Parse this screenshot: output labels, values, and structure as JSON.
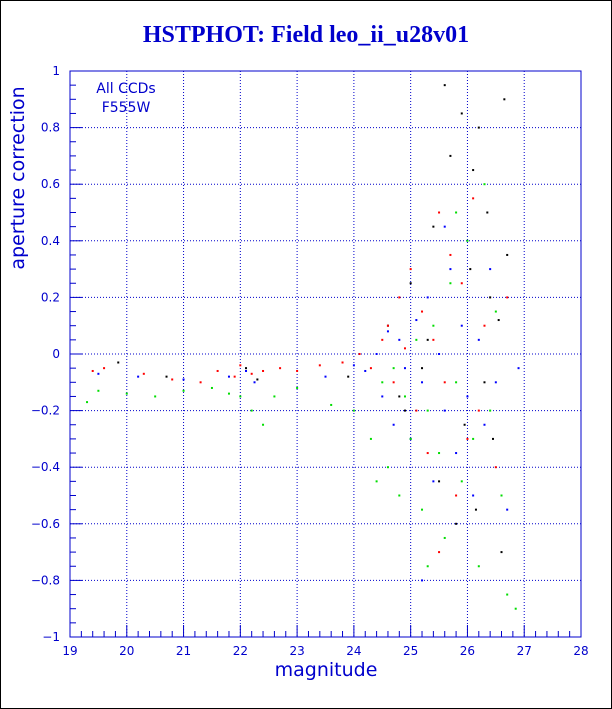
{
  "title": "HSTPHOT: Field leo_ii_u28v01",
  "chart_data": {
    "type": "scatter",
    "title": "HSTPHOT: Field leo_ii_u28v01",
    "xlabel": "magnitude",
    "ylabel": "aperture correction",
    "xlim": [
      19,
      28
    ],
    "ylim": [
      -1,
      1
    ],
    "x_ticks": [
      19,
      20,
      21,
      22,
      23,
      24,
      25,
      26,
      27,
      28
    ],
    "y_ticks": [
      -1,
      -0.8,
      -0.6,
      -0.4,
      -0.2,
      0,
      0.2,
      0.4,
      0.6,
      0.8,
      1
    ],
    "y_tick_labels": [
      "−1",
      "−0.8",
      "−0.6",
      "−0.4",
      "−0.2",
      "0",
      "0.2",
      "0.4",
      "0.6",
      "0.8",
      "1"
    ],
    "grid": true,
    "grid_style": "dotted",
    "annotations": [
      "All CCDs",
      "F555W"
    ],
    "series": [
      {
        "color": "#000000",
        "points": [
          [
            19.85,
            -0.03
          ],
          [
            20.7,
            -0.08
          ],
          [
            22.1,
            -0.05
          ],
          [
            22.3,
            -0.09
          ],
          [
            23.9,
            -0.08
          ],
          [
            24.6,
            0.1
          ],
          [
            24.8,
            -0.15
          ],
          [
            25.0,
            0.25
          ],
          [
            25.2,
            -0.05
          ],
          [
            25.4,
            0.45
          ],
          [
            25.5,
            -0.45
          ],
          [
            25.6,
            0.95
          ],
          [
            25.7,
            0.7
          ],
          [
            25.8,
            -0.6
          ],
          [
            25.9,
            0.85
          ],
          [
            25.95,
            -0.25
          ],
          [
            26.05,
            0.3
          ],
          [
            26.1,
            0.65
          ],
          [
            26.15,
            -0.55
          ],
          [
            26.2,
            0.8
          ],
          [
            26.3,
            -0.1
          ],
          [
            26.35,
            0.5
          ],
          [
            26.4,
            0.2
          ],
          [
            26.45,
            -0.3
          ],
          [
            26.55,
            0.12
          ],
          [
            26.6,
            -0.7
          ],
          [
            26.65,
            0.9
          ],
          [
            26.7,
            0.35
          ],
          [
            25.3,
            0.05
          ],
          [
            24.9,
            -0.2
          ]
        ]
      },
      {
        "color": "#ff0000",
        "points": [
          [
            19.4,
            -0.06
          ],
          [
            19.6,
            -0.05
          ],
          [
            20.3,
            -0.07
          ],
          [
            20.8,
            -0.09
          ],
          [
            21.3,
            -0.1
          ],
          [
            21.6,
            -0.06
          ],
          [
            21.9,
            -0.08
          ],
          [
            22.0,
            -0.04
          ],
          [
            22.2,
            -0.07
          ],
          [
            22.4,
            -0.06
          ],
          [
            22.7,
            -0.05
          ],
          [
            23.0,
            -0.06
          ],
          [
            23.4,
            -0.04
          ],
          [
            23.8,
            -0.03
          ],
          [
            24.1,
            0.0
          ],
          [
            24.3,
            -0.05
          ],
          [
            24.5,
            0.05
          ],
          [
            24.6,
            0.1
          ],
          [
            24.7,
            -0.1
          ],
          [
            24.8,
            0.2
          ],
          [
            24.9,
            0.02
          ],
          [
            25.0,
            0.3
          ],
          [
            25.1,
            -0.2
          ],
          [
            25.2,
            0.15
          ],
          [
            25.3,
            -0.35
          ],
          [
            25.4,
            0.05
          ],
          [
            25.5,
            0.5
          ],
          [
            25.6,
            -0.1
          ],
          [
            25.7,
            0.35
          ],
          [
            25.8,
            -0.5
          ],
          [
            25.9,
            0.25
          ],
          [
            26.0,
            -0.3
          ],
          [
            26.1,
            0.55
          ],
          [
            26.2,
            -0.2
          ],
          [
            26.3,
            0.1
          ],
          [
            26.5,
            -0.4
          ],
          [
            26.7,
            0.2
          ],
          [
            25.5,
            -0.7
          ]
        ]
      },
      {
        "color": "#0000ff",
        "points": [
          [
            19.5,
            -0.07
          ],
          [
            20.2,
            -0.08
          ],
          [
            21.0,
            -0.09
          ],
          [
            21.8,
            -0.08
          ],
          [
            22.1,
            -0.06
          ],
          [
            22.25,
            -0.1
          ],
          [
            23.5,
            -0.08
          ],
          [
            24.0,
            -0.04
          ],
          [
            24.2,
            -0.06
          ],
          [
            24.4,
            0.0
          ],
          [
            24.5,
            -0.15
          ],
          [
            24.6,
            0.08
          ],
          [
            24.7,
            -0.25
          ],
          [
            24.8,
            0.05
          ],
          [
            24.9,
            -0.05
          ],
          [
            25.0,
            -0.3
          ],
          [
            25.1,
            0.12
          ],
          [
            25.2,
            -0.1
          ],
          [
            25.3,
            0.2
          ],
          [
            25.4,
            -0.45
          ],
          [
            25.5,
            0.0
          ],
          [
            25.6,
            -0.2
          ],
          [
            25.7,
            0.3
          ],
          [
            25.8,
            -0.35
          ],
          [
            25.9,
            0.1
          ],
          [
            26.0,
            -0.15
          ],
          [
            26.1,
            -0.5
          ],
          [
            26.2,
            0.05
          ],
          [
            26.3,
            -0.25
          ],
          [
            26.4,
            0.3
          ],
          [
            26.5,
            -0.1
          ],
          [
            26.7,
            -0.55
          ],
          [
            26.9,
            -0.05
          ],
          [
            25.2,
            -0.8
          ],
          [
            25.6,
            0.45
          ]
        ]
      },
      {
        "color": "#00dd00",
        "points": [
          [
            19.3,
            -0.17
          ],
          [
            19.5,
            -0.13
          ],
          [
            20.0,
            -0.14
          ],
          [
            20.5,
            -0.15
          ],
          [
            21.0,
            -0.13
          ],
          [
            21.5,
            -0.12
          ],
          [
            21.8,
            -0.14
          ],
          [
            22.0,
            -0.15
          ],
          [
            22.2,
            -0.2
          ],
          [
            22.4,
            -0.25
          ],
          [
            22.6,
            -0.15
          ],
          [
            23.0,
            -0.12
          ],
          [
            23.6,
            -0.18
          ],
          [
            24.0,
            -0.2
          ],
          [
            24.3,
            -0.3
          ],
          [
            24.5,
            -0.1
          ],
          [
            24.6,
            -0.4
          ],
          [
            24.7,
            -0.05
          ],
          [
            24.8,
            -0.5
          ],
          [
            24.9,
            -0.15
          ],
          [
            25.0,
            -0.3
          ],
          [
            25.1,
            0.05
          ],
          [
            25.2,
            -0.55
          ],
          [
            25.3,
            -0.2
          ],
          [
            25.4,
            0.1
          ],
          [
            25.5,
            -0.35
          ],
          [
            25.6,
            -0.65
          ],
          [
            25.7,
            0.25
          ],
          [
            25.8,
            -0.1
          ],
          [
            25.9,
            -0.45
          ],
          [
            26.0,
            0.4
          ],
          [
            26.1,
            -0.3
          ],
          [
            26.2,
            -0.75
          ],
          [
            26.3,
            0.6
          ],
          [
            26.4,
            -0.2
          ],
          [
            26.5,
            0.15
          ],
          [
            26.6,
            -0.5
          ],
          [
            26.7,
            -0.85
          ],
          [
            26.85,
            -0.9
          ],
          [
            24.4,
            -0.45
          ],
          [
            25.3,
            -0.75
          ],
          [
            25.8,
            0.5
          ]
        ]
      }
    ]
  }
}
